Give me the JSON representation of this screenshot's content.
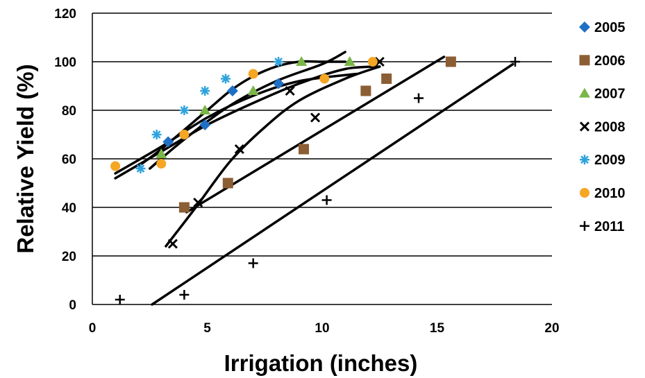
{
  "chart_data": {
    "type": "scatter",
    "title": "",
    "xlabel": "Irrigation (inches)",
    "ylabel": "Relative Yield (%)",
    "xlim": [
      0,
      20
    ],
    "ylim": [
      0,
      120
    ],
    "xticks": [
      0,
      5,
      10,
      15,
      20
    ],
    "yticks": [
      0,
      20,
      40,
      60,
      80,
      100,
      120
    ],
    "grid": "horizontal",
    "legend": "right",
    "series": [
      {
        "name": "2005",
        "marker": "diamond",
        "color": "#1f6fc5",
        "points": [
          [
            3.3,
            67
          ],
          [
            4.9,
            74
          ],
          [
            6.1,
            88
          ],
          [
            8.1,
            91
          ]
        ]
      },
      {
        "name": "2006",
        "marker": "square",
        "color": "#8b5e34",
        "points": [
          [
            4.0,
            40
          ],
          [
            5.9,
            50
          ],
          [
            9.2,
            64
          ],
          [
            11.9,
            88
          ],
          [
            12.8,
            93
          ],
          [
            15.6,
            100
          ]
        ]
      },
      {
        "name": "2007",
        "marker": "triangle",
        "color": "#7ab648",
        "points": [
          [
            3.0,
            62
          ],
          [
            4.9,
            80
          ],
          [
            7.0,
            88
          ],
          [
            9.1,
            100
          ],
          [
            11.2,
            100
          ]
        ]
      },
      {
        "name": "2008",
        "marker": "x",
        "color": "#000000",
        "points": [
          [
            3.5,
            25
          ],
          [
            4.6,
            42
          ],
          [
            6.4,
            64
          ],
          [
            8.6,
            88
          ],
          [
            9.7,
            77
          ],
          [
            12.5,
            100
          ]
        ]
      },
      {
        "name": "2009",
        "marker": "asterisk",
        "color": "#2ea3dc",
        "points": [
          [
            2.1,
            56
          ],
          [
            2.8,
            70
          ],
          [
            4.0,
            80
          ],
          [
            4.9,
            88
          ],
          [
            5.8,
            93
          ],
          [
            8.1,
            100
          ]
        ]
      },
      {
        "name": "2010",
        "marker": "circle",
        "color": "#f5a623",
        "points": [
          [
            1.0,
            57
          ],
          [
            3.0,
            58
          ],
          [
            4.0,
            70
          ],
          [
            7.0,
            95
          ],
          [
            10.1,
            93
          ],
          [
            12.2,
            100
          ]
        ]
      },
      {
        "name": "2011",
        "marker": "plus",
        "color": "#000000",
        "points": [
          [
            1.2,
            2
          ],
          [
            4.0,
            4
          ],
          [
            7.0,
            17
          ],
          [
            10.2,
            43
          ],
          [
            14.2,
            85
          ],
          [
            18.4,
            100
          ]
        ]
      }
    ],
    "trendlines": [
      {
        "kind": "curve",
        "points": [
          [
            1.0,
            52
          ],
          [
            3.0,
            63
          ],
          [
            5.0,
            74
          ],
          [
            7.0,
            83
          ],
          [
            9.0,
            91
          ],
          [
            11.0,
            97
          ],
          [
            12.5,
            98
          ]
        ]
      },
      {
        "kind": "curve",
        "points": [
          [
            1.0,
            54
          ],
          [
            3.0,
            65
          ],
          [
            5.0,
            77
          ],
          [
            7.0,
            86
          ],
          [
            9.0,
            92
          ],
          [
            11.5,
            95
          ]
        ]
      },
      {
        "kind": "curve",
        "points": [
          [
            2.0,
            57
          ],
          [
            3.0,
            64
          ],
          [
            5.0,
            80
          ],
          [
            6.0,
            88
          ],
          [
            7.0,
            94
          ],
          [
            8.0,
            98
          ],
          [
            9.0,
            100
          ],
          [
            10.0,
            100
          ],
          [
            11.0,
            100
          ]
        ]
      },
      {
        "kind": "curve",
        "points": [
          [
            2.5,
            56
          ],
          [
            4.0,
            68
          ],
          [
            6.0,
            82
          ],
          [
            8.0,
            92
          ],
          [
            10.0,
            99
          ],
          [
            11.0,
            104
          ]
        ]
      },
      {
        "kind": "curve",
        "points": [
          [
            3.2,
            24
          ],
          [
            4.5,
            40
          ],
          [
            6.0,
            59
          ],
          [
            7.5,
            73
          ],
          [
            9.0,
            84
          ],
          [
            11.0,
            93
          ],
          [
            12.5,
            98
          ]
        ]
      },
      {
        "kind": "line",
        "points": [
          [
            4.1,
            38
          ],
          [
            15.3,
            102
          ]
        ]
      },
      {
        "kind": "line",
        "points": [
          [
            2.6,
            0
          ],
          [
            18.3,
            99
          ]
        ]
      }
    ]
  }
}
